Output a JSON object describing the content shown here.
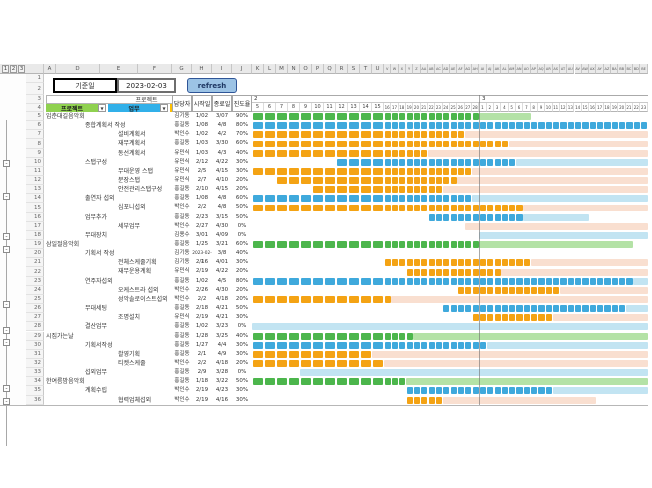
{
  "topbar": {
    "base_date_label": "기준일",
    "base_date_value": "2023-02-03",
    "refresh_label": "refresh",
    "merged_header": "프로젝트"
  },
  "filters": {
    "project_label": "프로젝트",
    "task_label": "업무",
    "subtask_label": "세부업무",
    "dropdown_glyph": "▼"
  },
  "columns": {
    "owner": "담당자",
    "start": "시작일",
    "end": "종료일",
    "progress": "진도율"
  },
  "outline": {
    "level_labels": [
      "1",
      "2",
      "3"
    ],
    "collapse_glyph": "-"
  },
  "col_letters_left": [
    "A",
    "D",
    "E",
    "F",
    "G",
    "H",
    "I",
    "J"
  ],
  "col_letters_chart": [
    "K",
    "L",
    "M",
    "N",
    "O",
    "P",
    "Q",
    "R",
    "S",
    "T",
    "U",
    "V",
    "W",
    "X",
    "Y",
    "Z",
    "AA",
    "AB",
    "AC",
    "AD",
    "AE",
    "AF",
    "AG",
    "AH",
    "AI",
    "AJ",
    "AK",
    "AL",
    "AM",
    "AN",
    "AO",
    "AP",
    "AQ",
    "AR",
    "AS",
    "AT",
    "AU",
    "AV",
    "AW",
    "AX",
    "AY",
    "AZ",
    "BA",
    "BB",
    "BC",
    "BD",
    "BE"
  ],
  "calendar": {
    "feb_label": "2",
    "mar_label": "3",
    "feb_days": [
      5,
      6,
      7,
      8,
      9,
      10,
      11,
      12,
      13,
      14,
      15,
      16,
      17,
      18,
      19,
      20,
      21,
      22,
      23,
      24,
      25,
      26,
      27,
      28
    ],
    "mar_days": [
      1,
      2,
      3,
      4,
      5,
      6,
      7,
      8,
      9,
      10,
      11,
      12,
      13,
      14,
      15,
      16,
      17,
      18,
      19,
      20,
      21,
      22,
      23
    ]
  },
  "colors": {
    "green": "#4CB64C",
    "light_green": "#B4E2A6",
    "blue": "#3FA9DC",
    "light_blue": "#C2E4F2",
    "orange": "#F4A314",
    "salmon": "#F9DFD0",
    "chip_green": "#8FD14F",
    "chip_blue": "#31B0E9",
    "chip_orange": "#FFC000",
    "refresh_bg": "#9CC3E5",
    "refresh_border": "#2F5597",
    "refresh_text": "#1F3864"
  },
  "rows": [
    {
      "n": 5,
      "level": "project",
      "name": "입춘대길음악회",
      "owner": "김기동",
      "start": "1/02",
      "end": "3/07",
      "progress": "90%",
      "bar": {
        "color": "green",
        "s": 0,
        "solid": 23,
        "light": 30
      }
    },
    {
      "n": 6,
      "level": "task",
      "name": "종합계획서 작성",
      "owner": "홍길동",
      "start": "1/08",
      "end": "4/8",
      "progress": "80%",
      "bar": {
        "color": "blue",
        "s": 0,
        "solid": 46,
        "light": null
      }
    },
    {
      "n": 7,
      "level": "subtask",
      "name": "설비계획서",
      "owner": "박인수",
      "start": "1/02",
      "end": "4/2",
      "progress": "70%",
      "bar": {
        "color": "orange",
        "s": 0,
        "solid": 21,
        "light": 46
      }
    },
    {
      "n": 8,
      "level": "subtask",
      "name": "재무계획서",
      "owner": "홍길동",
      "start": "1/03",
      "end": "3/30",
      "progress": "60%",
      "bar": {
        "color": "orange",
        "s": 0,
        "solid": 27,
        "light": 46
      }
    },
    {
      "n": 9,
      "level": "subtask",
      "name": "동선계획서",
      "owner": "유민식",
      "start": "1/03",
      "end": "4/3",
      "progress": "40%",
      "bar": {
        "color": "orange",
        "s": 0,
        "solid": 16,
        "light": 46
      }
    },
    {
      "n": 10,
      "level": "task",
      "name": "스탭구성",
      "owner": "유민식",
      "start": "2/12",
      "end": "4/22",
      "progress": "30%",
      "bar": {
        "color": "blue",
        "s": 7,
        "solid": 28,
        "light": 46
      }
    },
    {
      "n": 11,
      "level": "subtask",
      "name": "무대운영 스탭",
      "owner": "유민식",
      "start": "2/5",
      "end": "4/15",
      "progress": "30%",
      "bar": {
        "color": "orange",
        "s": 0,
        "solid": 22,
        "light": 46
      }
    },
    {
      "n": 12,
      "level": "subtask",
      "name": "분장스탭",
      "owner": "유민식",
      "start": "2/7",
      "end": "4/10",
      "progress": "20%",
      "bar": {
        "color": "orange",
        "s": 2,
        "solid": 20,
        "light": 46
      }
    },
    {
      "n": 13,
      "level": "subtask",
      "name": "안전관리스탭구성",
      "owner": "홍길동",
      "start": "2/10",
      "end": "4/15",
      "progress": "20%",
      "bar": {
        "color": "orange",
        "s": 5,
        "solid": 18,
        "light": 46
      }
    },
    {
      "n": 14,
      "level": "task",
      "name": "출연자 섭외",
      "owner": "홍길동",
      "start": "1/08",
      "end": "4/8",
      "progress": "60%",
      "bar": {
        "color": "blue",
        "s": 0,
        "solid": 22,
        "light": 46
      }
    },
    {
      "n": 15,
      "level": "subtask",
      "name": "심포니섭외",
      "owner": "박인수",
      "start": "2/2",
      "end": "4/8",
      "progress": "50%",
      "bar": {
        "color": "orange",
        "s": 0,
        "solid": 29,
        "light": 46
      }
    },
    {
      "n": 16,
      "level": "task",
      "name": "업무추가",
      "owner": "홍길동",
      "start": "2/23",
      "end": "3/15",
      "progress": "50%",
      "bar": {
        "color": "blue",
        "s": 17,
        "solid": 29,
        "light": 38
      }
    },
    {
      "n": 17,
      "level": "subtask",
      "name": "세부업무",
      "owner": "박인수",
      "start": "2/27",
      "end": "4/30",
      "progress": "0%",
      "bar": {
        "color": "orange",
        "s": 22,
        "solid": null,
        "light": 46
      }
    },
    {
      "n": 18,
      "level": "task",
      "name": "무대장치",
      "owner": "김용수",
      "start": "3/01",
      "end": "4/09",
      "progress": "0%",
      "bar": {
        "color": "blue",
        "s": 24,
        "solid": null,
        "light": 46
      }
    },
    {
      "n": 19,
      "level": "project",
      "name": "삼일절음악회",
      "owner": "홍길동",
      "start": "1/25",
      "end": "3/21",
      "progress": "60%",
      "bar": {
        "color": "green",
        "s": 0,
        "solid": 23,
        "light": 44
      }
    },
    {
      "n": 20,
      "level": "task",
      "name": "기획서 작성",
      "owner": "김기동",
      "start": "2023-02-3",
      "end": "3/8",
      "progress": "40%",
      "bar": null
    },
    {
      "n": 21,
      "level": "subtask",
      "name": "전체스케줄기획",
      "owner": "김기동",
      "start": "2/16",
      "end": "4/01",
      "progress": "30%",
      "bar": {
        "color": "orange",
        "s": 11,
        "solid": 30,
        "light": 46
      }
    },
    {
      "n": 22,
      "level": "subtask",
      "name": "재무운용계획",
      "owner": "유민식",
      "start": "2/19",
      "end": "4/22",
      "progress": "20%",
      "bar": {
        "color": "orange",
        "s": 14,
        "solid": 26,
        "light": 46
      }
    },
    {
      "n": 23,
      "level": "task",
      "name": "연주자섭외",
      "owner": "홍길동",
      "start": "1/02",
      "end": "4/5",
      "progress": "80%",
      "bar": {
        "color": "blue",
        "s": 0,
        "solid": 44,
        "light": 46
      }
    },
    {
      "n": 24,
      "level": "subtask",
      "name": "오케스트라 섭외",
      "owner": "박인수",
      "start": "2/26",
      "end": "4/30",
      "progress": "20%",
      "bar": {
        "color": "orange",
        "s": 21,
        "solid": 34,
        "light": 46
      }
    },
    {
      "n": 25,
      "level": "subtask",
      "name": "성악솔로이스트섭외",
      "owner": "박인수",
      "start": "2/2",
      "end": "4/18",
      "progress": "20%",
      "bar": {
        "color": "orange",
        "s": 0,
        "solid": 11,
        "light": 46
      }
    },
    {
      "n": 26,
      "level": "task",
      "name": "무대세팅",
      "owner": "홍길동",
      "start": "2/18",
      "end": "4/21",
      "progress": "50%",
      "bar": {
        "color": "blue",
        "s": 19,
        "solid": 43,
        "light": 46
      }
    },
    {
      "n": 27,
      "level": "subtask",
      "name": "조명설치",
      "owner": "유민식",
      "start": "2/19",
      "end": "4/21",
      "progress": "30%",
      "bar": {
        "color": "orange",
        "s": 23,
        "solid": 33,
        "light": 46
      }
    },
    {
      "n": 28,
      "level": "task",
      "name": "결산업무",
      "owner": "홍길동",
      "start": "1/02",
      "end": "3/23",
      "progress": "0%",
      "bar": {
        "color": "blue",
        "s": 0,
        "solid": null,
        "light": 46
      }
    },
    {
      "n": 29,
      "level": "project",
      "name": "시집가는날",
      "owner": "홍길동",
      "start": "1/28",
      "end": "3/25",
      "progress": "40%",
      "bar": {
        "color": "green",
        "s": 0,
        "solid": 14,
        "light": 46
      }
    },
    {
      "n": 30,
      "level": "task",
      "name": "기획서작성",
      "owner": "홍길동",
      "start": "1/27",
      "end": "4/4",
      "progress": "30%",
      "bar": {
        "color": "blue",
        "s": 0,
        "solid": 24,
        "light": 46
      }
    },
    {
      "n": 31,
      "level": "subtask",
      "name": "촬영기획",
      "owner": "홍길동",
      "start": "2/1",
      "end": "4/9",
      "progress": "30%",
      "bar": {
        "color": "orange",
        "s": 0,
        "solid": 9,
        "light": 46
      }
    },
    {
      "n": 32,
      "level": "subtask",
      "name": "티켓스케줄",
      "owner": "박인수",
      "start": "2/2",
      "end": "4/18",
      "progress": "20%",
      "bar": {
        "color": "orange",
        "s": 0,
        "solid": 10,
        "light": 46
      }
    },
    {
      "n": 33,
      "level": "task",
      "name": "섭외업무",
      "owner": "홍길동",
      "start": "2/9",
      "end": "3/28",
      "progress": "0%",
      "bar": {
        "color": "blue",
        "s": 4,
        "solid": null,
        "light": 46
      }
    },
    {
      "n": 34,
      "level": "project",
      "name": "한여름밤음악회",
      "owner": "홍길동",
      "start": "1/18",
      "end": "3/22",
      "progress": "50%",
      "bar": {
        "color": "green",
        "s": 0,
        "solid": 13,
        "light": 46
      }
    },
    {
      "n": 35,
      "level": "task",
      "name": "계획수립",
      "owner": "박인수",
      "start": "2/19",
      "end": "4/23",
      "progress": "30%",
      "bar": {
        "color": "blue",
        "s": 14,
        "solid": 33,
        "light": 46
      }
    },
    {
      "n": 36,
      "level": "subtask",
      "name": "협력업체섭외",
      "owner": "박인수",
      "start": "2/19",
      "end": "4/16",
      "progress": "30%",
      "bar": {
        "color": "orange",
        "s": 14,
        "solid": 18,
        "light": 39
      }
    }
  ]
}
